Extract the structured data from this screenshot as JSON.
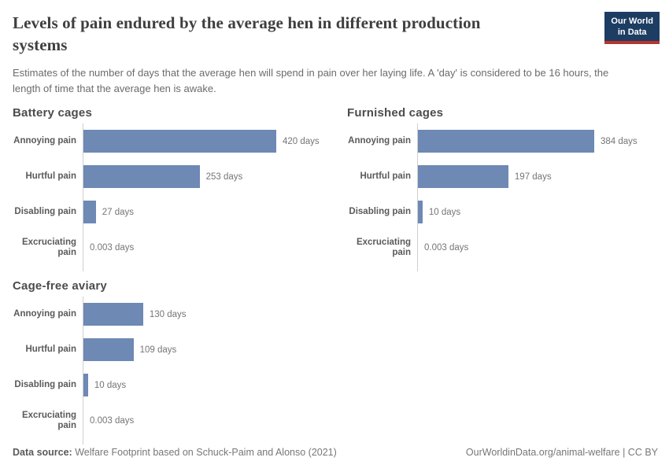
{
  "header": {
    "title": "Levels of pain endured by the average hen in different production systems",
    "subtitle": "Estimates of the number of days that the average hen will spend in pain over her laying life. A 'day' is considered to be 16 hours, the length of time that the average hen is awake.",
    "logo": {
      "line1": "Our World",
      "line2": "in Data"
    }
  },
  "chart_data": {
    "type": "bar",
    "orientation": "horizontal",
    "unit": "days",
    "grid": false,
    "legend": false,
    "shared_x_max_days": 420,
    "categories": [
      "Annoying pain",
      "Hurtful pain",
      "Disabling pain",
      "Excruciating pain"
    ],
    "charts": [
      {
        "title": "Battery cages",
        "values": [
          420,
          253,
          27,
          0.003
        ],
        "value_labels": [
          "420 days",
          "253 days",
          "27 days",
          "0.003 days"
        ]
      },
      {
        "title": "Furnished cages",
        "values": [
          384,
          197,
          10,
          0.003
        ],
        "value_labels": [
          "384 days",
          "197 days",
          "10 days",
          "0.003 days"
        ]
      },
      {
        "title": "Cage-free aviary",
        "values": [
          130,
          109,
          10,
          0.003
        ],
        "value_labels": [
          "130 days",
          "109 days",
          "10 days",
          "0.003 days"
        ]
      }
    ]
  },
  "colors": {
    "bar": "#6d89b4",
    "axis": "#cfcfcf",
    "logo_background": "#1d3d63",
    "logo_underline": "#b8342e"
  },
  "footer": {
    "source_label": "Data source:",
    "source_text": " Welfare Footprint based on Schuck-Paim and Alonso (2021)",
    "link_text": "OurWorldinData.org/animal-welfare | CC BY"
  }
}
